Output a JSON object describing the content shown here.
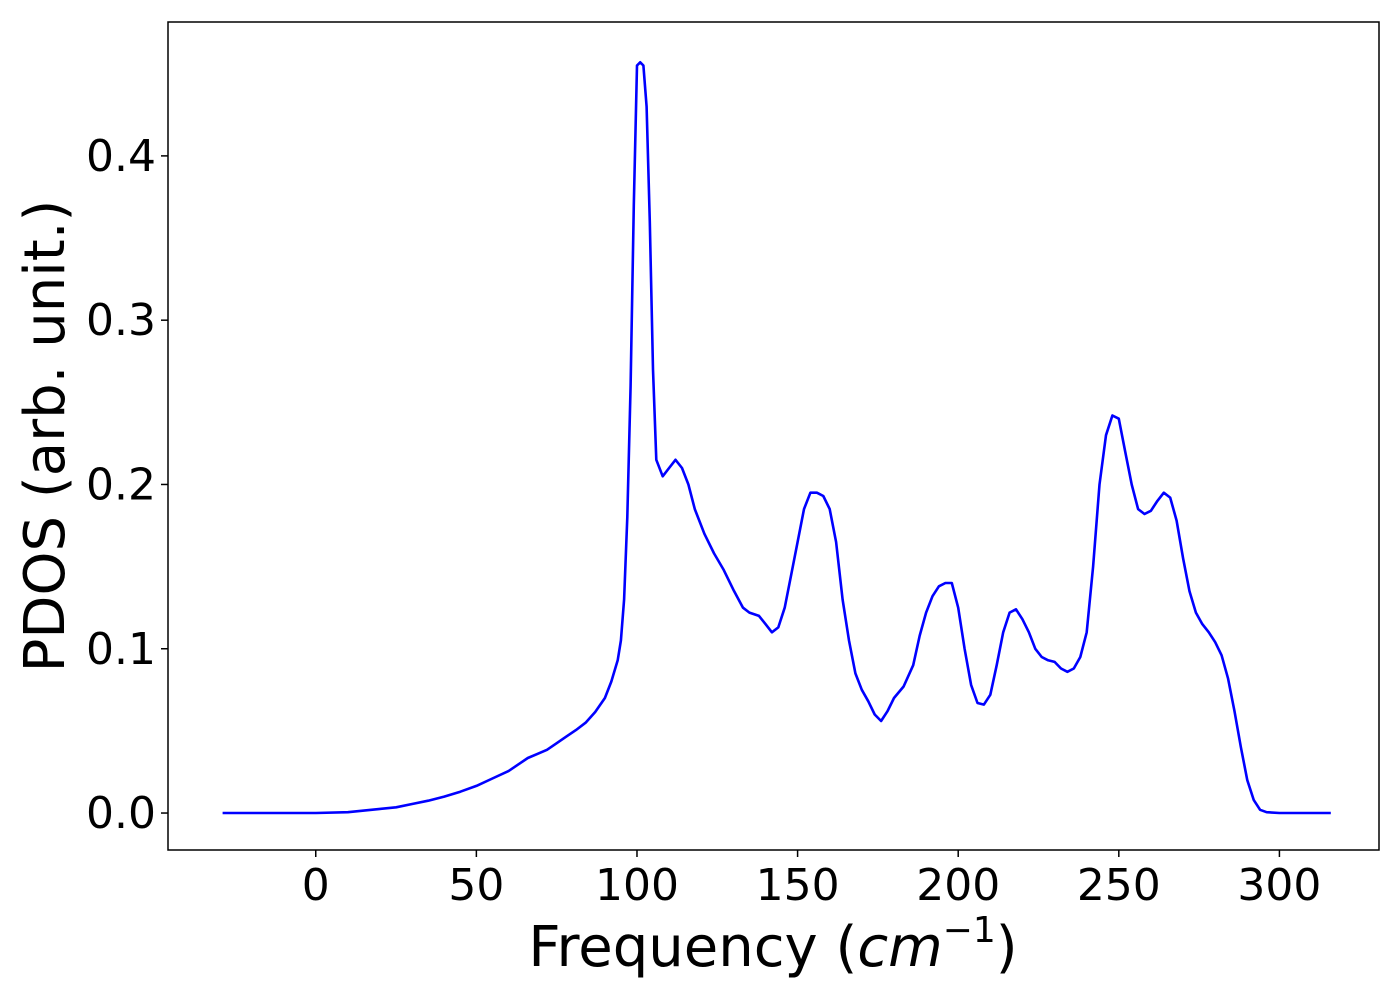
{
  "chart_data": {
    "type": "line",
    "title": "",
    "xlabel": "Frequency (",
    "xlabel_math": "cm",
    "xlabel_sup": "−1",
    "xlabel_close": ")",
    "ylabel": "PDOS (arb. unit.)",
    "xlim": [
      -46,
      331
    ],
    "ylim": [
      -0.0225,
      0.4815
    ],
    "xticks": [
      0,
      50,
      100,
      150,
      200,
      250,
      300
    ],
    "xtick_labels": [
      "0",
      "50",
      "100",
      "150",
      "200",
      "250",
      "300"
    ],
    "yticks": [
      0.0,
      0.1,
      0.2,
      0.3,
      0.4
    ],
    "ytick_labels": [
      "0.0",
      "0.1",
      "0.2",
      "0.3",
      "0.4"
    ],
    "grid": false,
    "series": [
      {
        "color": "#0000ff",
        "x": [
          -29,
          -20,
          -10,
          0,
          10,
          15,
          20,
          25,
          30,
          35,
          40,
          45,
          50,
          55,
          60,
          63,
          66,
          69,
          72,
          75,
          78,
          81,
          84,
          87,
          90,
          92,
          94,
          95,
          96,
          97,
          98,
          99,
          100,
          101,
          102,
          103,
          104,
          105,
          106,
          108,
          110,
          112,
          114,
          116,
          118,
          121,
          124,
          127,
          130,
          133,
          135,
          138,
          140,
          142,
          144,
          146,
          148,
          150,
          152,
          154,
          156,
          158,
          160,
          162,
          164,
          166,
          168,
          170,
          172,
          174,
          176,
          178,
          180,
          183,
          186,
          188,
          190,
          192,
          194,
          196,
          198,
          200,
          202,
          204,
          206,
          208,
          210,
          212,
          214,
          216,
          218,
          220,
          222,
          224,
          226,
          228,
          230,
          232,
          234,
          236,
          238,
          240,
          242,
          244,
          246,
          248,
          250,
          252,
          254,
          256,
          258,
          260,
          262,
          264,
          266,
          268,
          270,
          272,
          274,
          276,
          278,
          280,
          282,
          284,
          286,
          288,
          290,
          292,
          294,
          296,
          300,
          310,
          316
        ],
        "y": [
          0.0,
          0.0,
          0.0,
          0.0,
          0.0005,
          0.0015,
          0.0025,
          0.0035,
          0.0055,
          0.0075,
          0.01,
          0.013,
          0.0165,
          0.021,
          0.0255,
          0.0295,
          0.0335,
          0.036,
          0.0385,
          0.0425,
          0.0465,
          0.0505,
          0.055,
          0.0615,
          0.07,
          0.08,
          0.093,
          0.105,
          0.13,
          0.18,
          0.26,
          0.37,
          0.455,
          0.457,
          0.455,
          0.43,
          0.36,
          0.27,
          0.215,
          0.205,
          0.21,
          0.215,
          0.21,
          0.2,
          0.185,
          0.17,
          0.158,
          0.148,
          0.136,
          0.125,
          0.122,
          0.12,
          0.115,
          0.11,
          0.113,
          0.125,
          0.145,
          0.165,
          0.185,
          0.195,
          0.195,
          0.193,
          0.185,
          0.165,
          0.13,
          0.105,
          0.085,
          0.075,
          0.068,
          0.06,
          0.056,
          0.062,
          0.07,
          0.077,
          0.09,
          0.108,
          0.122,
          0.132,
          0.138,
          0.14,
          0.14,
          0.125,
          0.1,
          0.078,
          0.067,
          0.066,
          0.072,
          0.09,
          0.11,
          0.122,
          0.124,
          0.118,
          0.11,
          0.1,
          0.095,
          0.093,
          0.092,
          0.088,
          0.086,
          0.088,
          0.095,
          0.11,
          0.15,
          0.2,
          0.23,
          0.242,
          0.24,
          0.22,
          0.2,
          0.185,
          0.182,
          0.184,
          0.19,
          0.195,
          0.192,
          0.178,
          0.155,
          0.135,
          0.122,
          0.115,
          0.11,
          0.104,
          0.096,
          0.082,
          0.062,
          0.04,
          0.02,
          0.008,
          0.002,
          0.0005,
          0.0,
          0.0,
          0.0
        ]
      }
    ]
  }
}
